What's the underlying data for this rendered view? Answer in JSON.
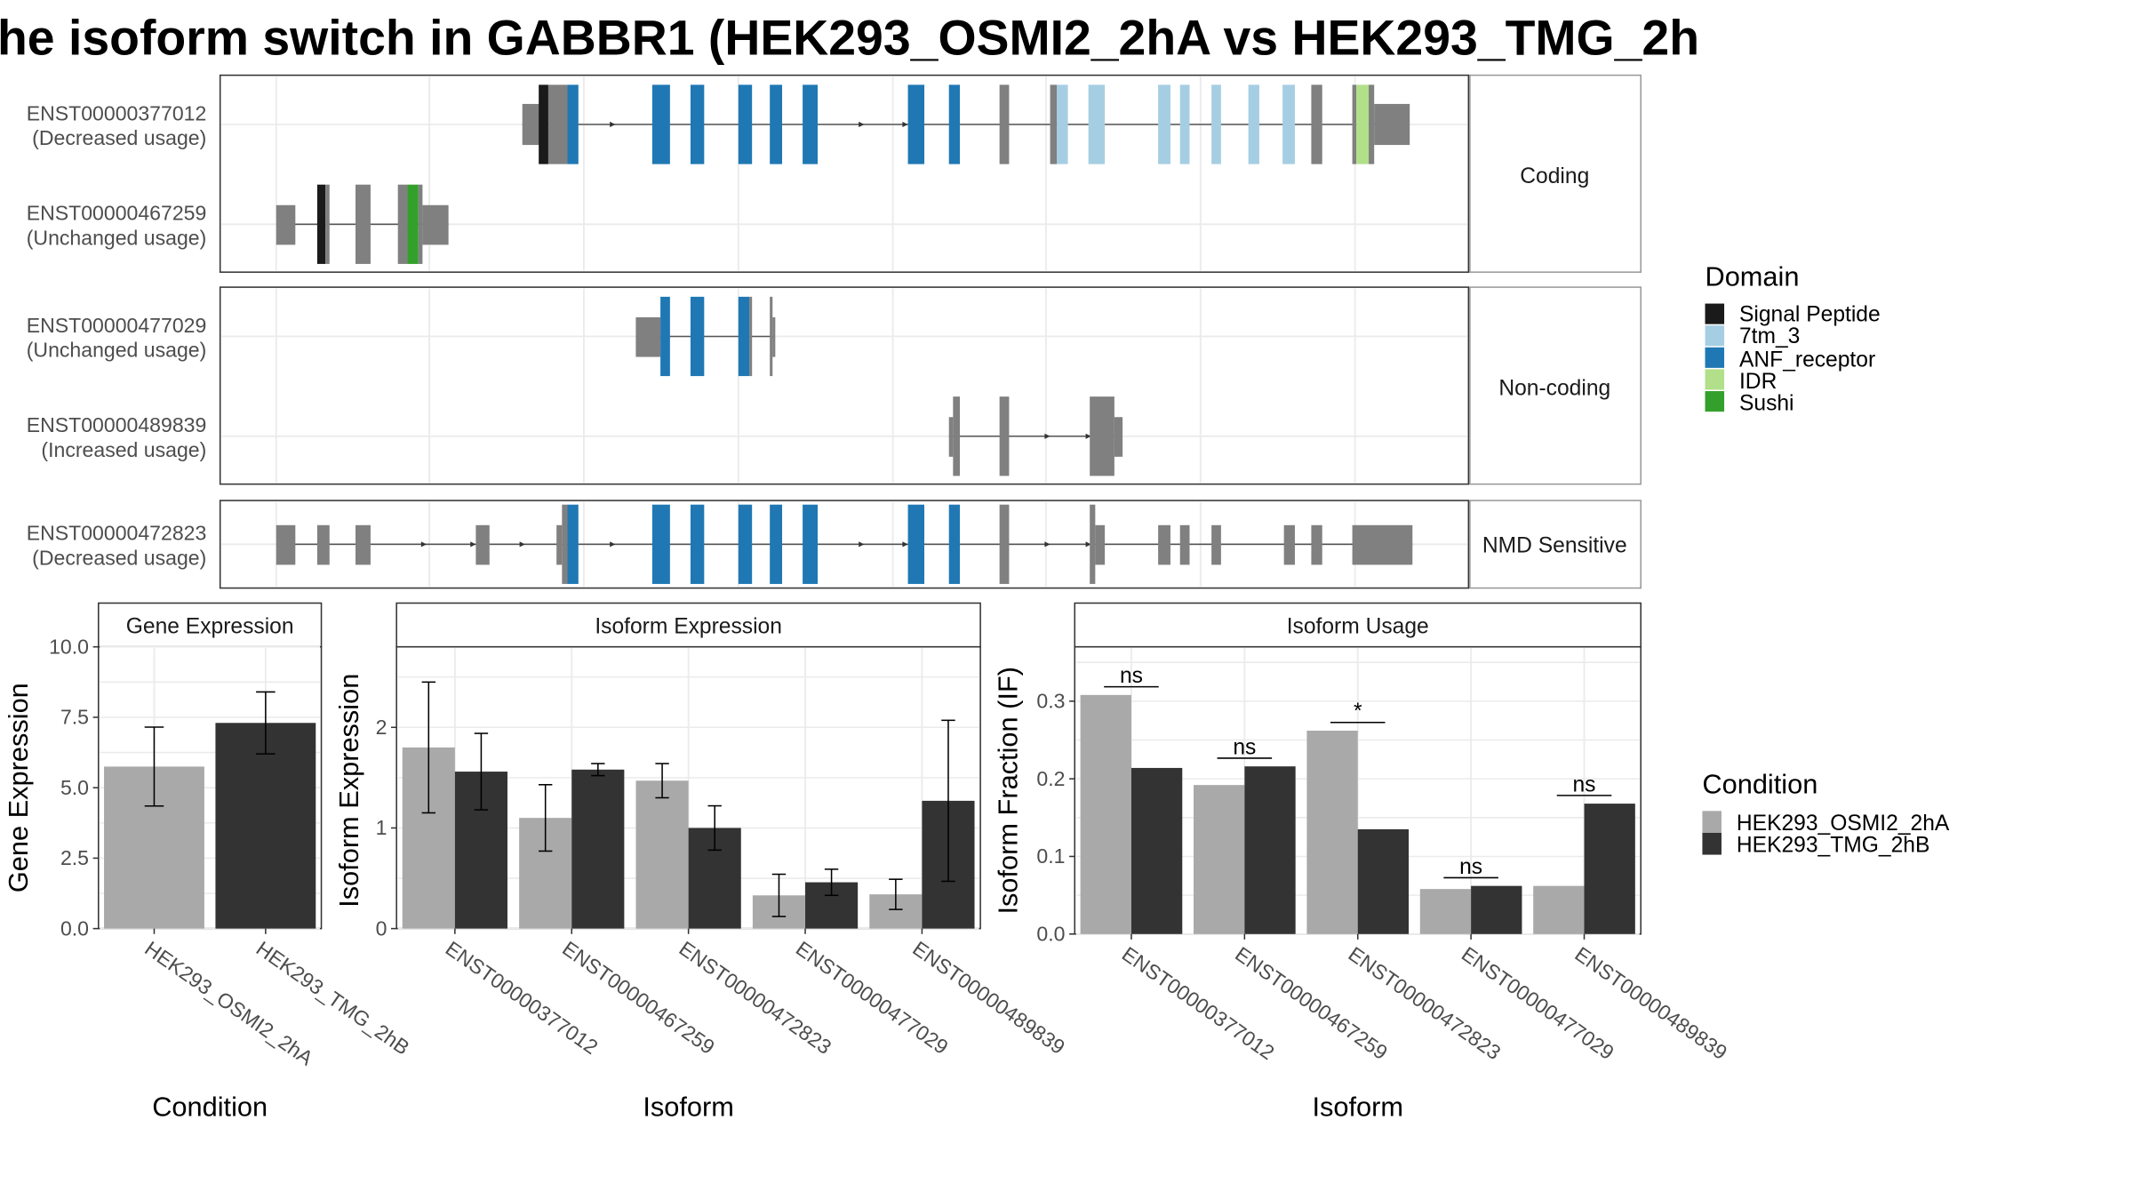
{
  "title": "he isoform switch in GABBR1 (HEK293_OSMI2_2hA vs HEK293_TMG_2h",
  "colors": {
    "signal_peptide": "#1a1a1a",
    "7tm_3": "#a6cee3",
    "anf_receptor": "#1f78b4",
    "idr": "#b2df8a",
    "sushi": "#33a02c",
    "exon_grey": "#808080",
    "cond_a": "#a9a9a9",
    "cond_b": "#333333"
  },
  "structure": {
    "facets": [
      "Coding",
      "Non-coding",
      "NMD Sensitive"
    ],
    "transcripts": [
      {
        "id": "ENST00000377012",
        "usage": "(Decreased usage)"
      },
      {
        "id": "ENST00000467259",
        "usage": "(Unchanged usage)"
      },
      {
        "id": "ENST00000477029",
        "usage": "(Unchanged usage)"
      },
      {
        "id": "ENST00000489839",
        "usage": "(Increased usage)"
      },
      {
        "id": "ENST00000472823",
        "usage": "(Decreased usage)"
      }
    ]
  },
  "legend_domain": {
    "title": "Domain",
    "items": [
      "Signal Peptide",
      "7tm_3",
      "ANF_receptor",
      "IDR",
      "Sushi"
    ]
  },
  "legend_condition": {
    "title": "Condition",
    "items": [
      "HEK293_OSMI2_2hA",
      "HEK293_TMG_2hB"
    ]
  },
  "chart_data": [
    {
      "type": "bar",
      "title": "Gene Expression",
      "xlabel": "Condition",
      "ylabel": "Gene Expression",
      "ylim": [
        0,
        10
      ],
      "yticks": [
        "0.0",
        "2.5",
        "5.0",
        "7.5",
        "10.0"
      ],
      "categories": [
        "HEK293_OSMI2_2hA",
        "HEK293_TMG_2hB"
      ],
      "values": [
        5.75,
        7.3
      ],
      "err_low": [
        4.35,
        6.2
      ],
      "err_high": [
        7.15,
        8.4
      ]
    },
    {
      "type": "bar",
      "title": "Isoform Expression",
      "xlabel": "Isoform",
      "ylabel": "Isoform Expression",
      "ylim": [
        0,
        2.8
      ],
      "yticks": [
        "0",
        "1",
        "2"
      ],
      "categories": [
        "ENST00000377012",
        "ENST00000467259",
        "ENST00000472823",
        "ENST00000477029",
        "ENST00000489839"
      ],
      "series": [
        {
          "name": "HEK293_OSMI2_2hA",
          "values": [
            1.8,
            1.1,
            1.47,
            0.33,
            0.34
          ],
          "err_low": [
            1.15,
            0.77,
            1.3,
            0.12,
            0.19
          ],
          "err_high": [
            2.45,
            1.43,
            1.64,
            0.54,
            0.49
          ]
        },
        {
          "name": "HEK293_TMG_2hB",
          "values": [
            1.56,
            1.58,
            1.0,
            0.46,
            1.27
          ],
          "err_low": [
            1.18,
            1.52,
            0.78,
            0.33,
            0.47
          ],
          "err_high": [
            1.94,
            1.64,
            1.22,
            0.59,
            2.07
          ]
        }
      ]
    },
    {
      "type": "bar",
      "title": "Isoform Usage",
      "xlabel": "Isoform",
      "ylabel": "Isoform Fraction (IF)",
      "ylim": [
        0,
        0.37
      ],
      "yticks": [
        "0.0",
        "0.1",
        "0.2",
        "0.3"
      ],
      "categories": [
        "ENST00000377012",
        "ENST00000467259",
        "ENST00000472823",
        "ENST00000477029",
        "ENST00000489839"
      ],
      "series": [
        {
          "name": "HEK293_OSMI2_2hA",
          "values": [
            0.308,
            0.192,
            0.262,
            0.058,
            0.062
          ]
        },
        {
          "name": "HEK293_TMG_2hB",
          "values": [
            0.214,
            0.216,
            0.135,
            0.062,
            0.168
          ]
        }
      ],
      "significance": [
        "ns",
        "ns",
        "*",
        "ns",
        "ns"
      ]
    }
  ]
}
